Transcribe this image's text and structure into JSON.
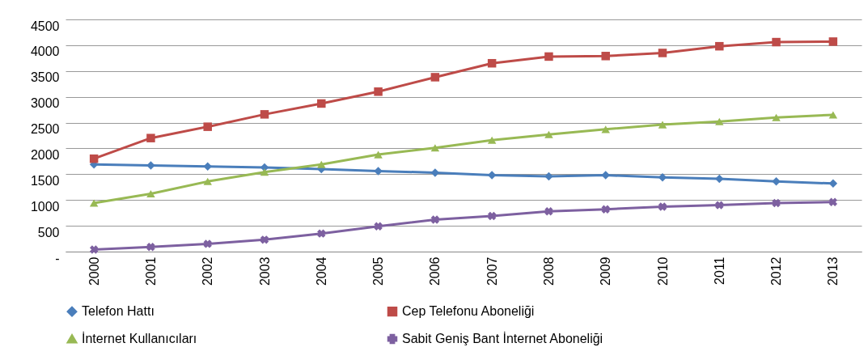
{
  "chart_data": {
    "type": "line",
    "categories": [
      "2000",
      "2001",
      "2002",
      "2003",
      "2004",
      "2005",
      "2006",
      "2007",
      "2008",
      "2009",
      "2010",
      "2011",
      "2012",
      "2013"
    ],
    "series": [
      {
        "name": "Telefon Hattı",
        "color": "#4a7ebb",
        "marker": "diamond",
        "values": [
          1690,
          1670,
          1650,
          1630,
          1600,
          1560,
          1530,
          1480,
          1460,
          1480,
          1440,
          1410,
          1360,
          1320
        ]
      },
      {
        "name": "Cep Telefonu Aboneliği",
        "color": "#be4b48",
        "marker": "square",
        "values": [
          1800,
          2200,
          2420,
          2660,
          2870,
          3100,
          3380,
          3650,
          3780,
          3790,
          3850,
          3980,
          4060,
          4070
        ]
      },
      {
        "name": "İnternet Kullanıcıları",
        "color": "#98b954",
        "marker": "triangle",
        "values": [
          940,
          1120,
          1360,
          1540,
          1690,
          1880,
          2010,
          2160,
          2270,
          2370,
          2460,
          2520,
          2600,
          2650
        ]
      },
      {
        "name": "Sabit Geniş Bant İnternet Aboneliği",
        "color": "#7d60a0",
        "marker": "cross",
        "values": [
          40,
          90,
          150,
          230,
          350,
          490,
          620,
          690,
          780,
          820,
          870,
          900,
          940,
          960
        ]
      }
    ],
    "ylim": [
      0,
      4500
    ],
    "yticks": [
      {
        "value": 0,
        "label": "-"
      },
      500,
      1000,
      1500,
      2000,
      2500,
      3000,
      3500,
      4000,
      4500
    ],
    "grid": "y",
    "legend": "bottom"
  }
}
